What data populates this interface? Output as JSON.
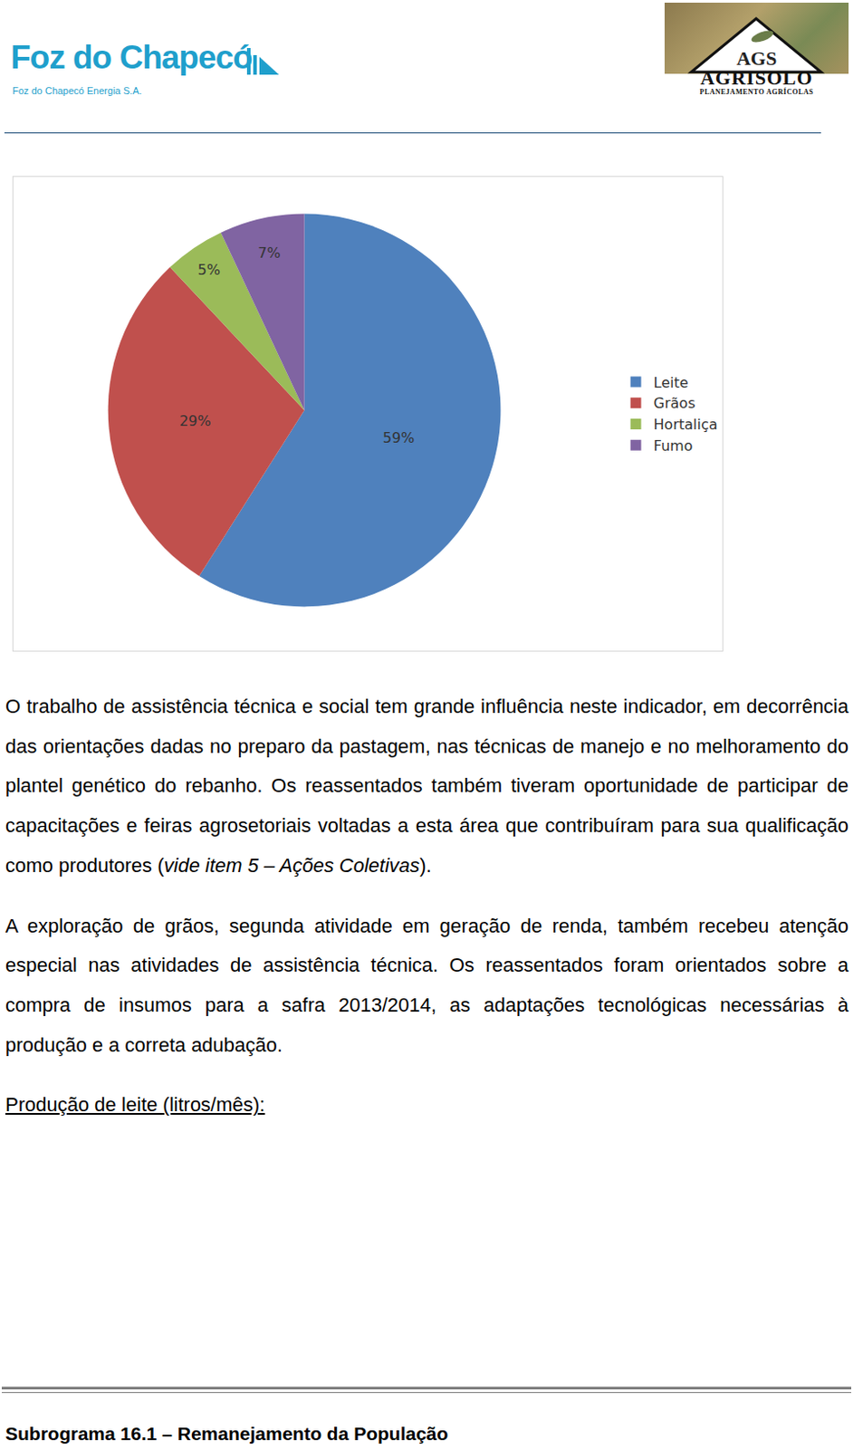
{
  "header": {
    "left_logo": {
      "title": "Foz do Chapecó",
      "subtitle": "Foz do Chapecó Energia S.A."
    },
    "right_logo": {
      "title": "AGS",
      "name": "AGRISOLO",
      "subtitle": "PLANEJAMENTO AGRÍCOLAS"
    }
  },
  "chart_data": {
    "type": "pie",
    "categories": [
      "Leite",
      "Grãos",
      "Hortaliça",
      "Fumo"
    ],
    "values": [
      59,
      29,
      5,
      7
    ],
    "value_labels": [
      "59%",
      "29%",
      "5%",
      "7%"
    ],
    "colors": [
      "#4f81bd",
      "#c0504d",
      "#9bbb59",
      "#8064a2"
    ],
    "data_labels": true,
    "legend": "right"
  },
  "paragraphs": [
    [
      {
        "text": "O trabalho de assistência técnica e social tem grande influência neste indicador, em decorrência das orientações dadas no preparo da pastagem, nas técnicas de manejo e no melhoramento do plantel genético do rebanho. Os reassentados também tiveram oportunidade de participar de capacitações e feiras agrosetoriais voltadas a esta área que contribuíram para sua qualificação como produtores ("
      },
      {
        "text": "vide item 5 – Ações Coletivas",
        "italic": true
      },
      {
        "text": ")."
      }
    ],
    [
      {
        "text": "A exploração de grãos, segunda atividade em geração de renda, também recebeu atenção especial nas atividades de assistência técnica. Os reassentados foram orientados sobre a compra de insumos para a safra 2013/2014, as adaptações tecnológicas necessárias à produção e a correta adubação."
      }
    ]
  ],
  "subheading": "Produção de leite (litros/mês):",
  "footer": "Subrograma 16.1 – Remanejamento da População"
}
